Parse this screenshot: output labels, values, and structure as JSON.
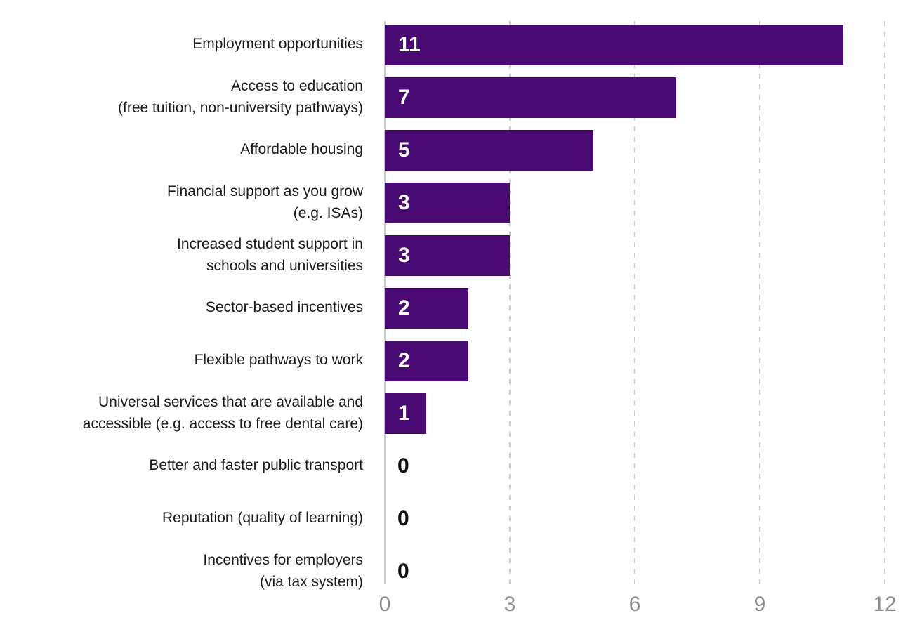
{
  "chart_data": {
    "type": "bar",
    "orientation": "horizontal",
    "title": "",
    "xlabel": "",
    "ylabel": "",
    "categories": [
      "Employment opportunities",
      "Access to education\n(free tuition, non-university pathways)",
      "Affordable housing",
      "Financial support as you grow\n(e.g. ISAs)",
      "Increased student support in\nschools and universities",
      "Sector-based incentives",
      "Flexible pathways to work",
      "Universal services that are available and\naccessible (e.g. access to free dental care)",
      "Better and faster public transport",
      "Reputation (quality of learning)",
      "Incentives for employers\n(via tax system)"
    ],
    "values": [
      11,
      7,
      5,
      3,
      3,
      2,
      2,
      1,
      0,
      0,
      0
    ],
    "xlim": [
      0,
      12
    ],
    "xticks": [
      0,
      3,
      6,
      9,
      12
    ],
    "xtick_labels": [
      "0",
      "3",
      "6",
      "9",
      "12"
    ],
    "grid": "vertical dashed gridlines at 3, 6, 9, 12; solid axis line at 0",
    "legend": "none",
    "colors": {
      "bar": "#4A0A73",
      "value_label_inside": "#FFFFFF",
      "value_label_zero": "#111111",
      "category_label": "#1A1A1A",
      "tick_label": "#8C8C8C",
      "gridline": "#CCCCCC",
      "axis_line": "#C9C9C9",
      "background": "#FFFFFF"
    }
  }
}
